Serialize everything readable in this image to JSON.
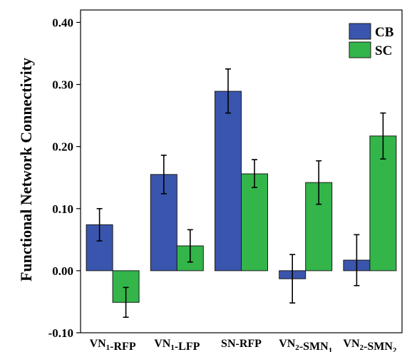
{
  "chart_data": {
    "type": "bar",
    "ylabel": "Functional Network Connectivity",
    "xlabel": "",
    "ylim": [
      -0.1,
      0.42
    ],
    "yticks": [
      -0.1,
      0.0,
      0.1,
      0.2,
      0.3,
      0.4
    ],
    "ytick_labels": [
      "-0.10",
      "0.00",
      "0.10",
      "0.20",
      "0.30",
      "0.40"
    ],
    "grid": false,
    "legend_position": "top-right",
    "categories": [
      {
        "label": "VN",
        "sub": "1",
        "tail": "-RFP",
        "tail_sub": ""
      },
      {
        "label": "VN",
        "sub": "1",
        "tail": "-LFP",
        "tail_sub": ""
      },
      {
        "label": "SN-RFP",
        "sub": "",
        "tail": "",
        "tail_sub": ""
      },
      {
        "label": "VN",
        "sub": "2",
        "tail": "-SMN",
        "tail_sub": "1"
      },
      {
        "label": "VN",
        "sub": "2",
        "tail": "-SMN",
        "tail_sub": "2"
      }
    ],
    "series": [
      {
        "name": "CB",
        "color": "#3a55ad",
        "values": [
          0.074,
          0.155,
          0.289,
          -0.013,
          0.017
        ],
        "err_low": [
          0.048,
          0.124,
          0.254,
          -0.052,
          -0.024
        ],
        "err_high": [
          0.1,
          0.186,
          0.325,
          0.026,
          0.058
        ]
      },
      {
        "name": "SC",
        "color": "#33b54a",
        "values": [
          -0.051,
          0.04,
          0.156,
          0.142,
          0.217
        ],
        "err_low": [
          -0.075,
          0.014,
          0.134,
          0.107,
          0.18
        ],
        "err_high": [
          -0.027,
          0.066,
          0.179,
          0.177,
          0.254
        ]
      }
    ]
  }
}
